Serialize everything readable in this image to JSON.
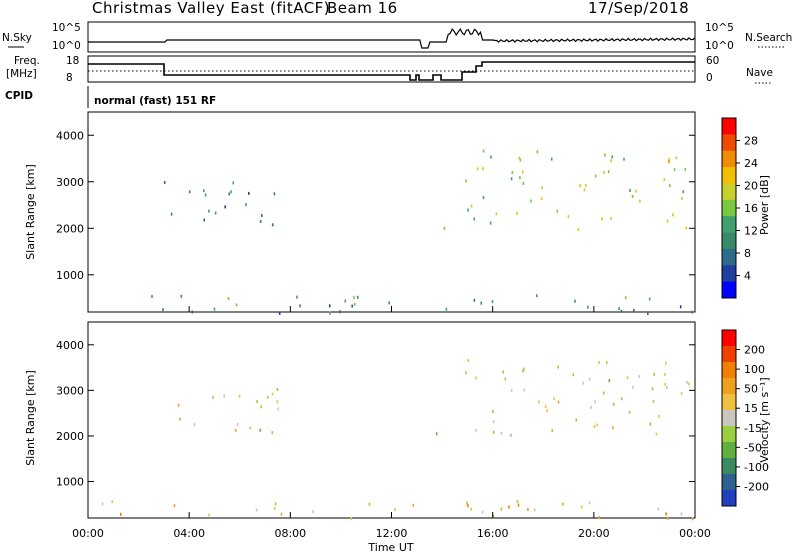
{
  "header": {
    "station": "Christmas Valley East (fitACF)",
    "beam": "Beam 16",
    "date": "17/Sep/2018"
  },
  "aux_panel": {
    "nsky_label": "N.Sky",
    "nsearch_label": "N.Search",
    "freq_label_1": "Freq.",
    "freq_label_2": "[MHz]",
    "nave_label": "Nave",
    "cpid_label": "CPID",
    "cpid_text": "normal (fast) 151 RF",
    "noise_ticks": [
      "10^5",
      "10^0"
    ],
    "noise_ticks_right": [
      "10^5",
      "10^0"
    ],
    "freq_ticks": [
      "18",
      "8"
    ],
    "nave_ticks": [
      "60",
      "0"
    ]
  },
  "power_panel": {
    "ylabel": "Slant Range [km]",
    "colorbar_label": "Power [dB]",
    "colorbar_ticks": [
      "28",
      "24",
      "20",
      "16",
      "12",
      "8",
      "4"
    ],
    "colorbar_colors": [
      "#0000ff",
      "#1e3ea0",
      "#2e6b8a",
      "#3a8a6a",
      "#40a070",
      "#7ac840",
      "#c8d030",
      "#f0c000",
      "#f08c00",
      "#f04a00",
      "#ff0000"
    ]
  },
  "velocity_panel": {
    "ylabel": "Slant Range [km]",
    "colorbar_label": "Velocity [m s⁻¹]",
    "colorbar_ticks": [
      "200",
      "100",
      "50",
      "15",
      "-15",
      "-50",
      "-100",
      "-200"
    ],
    "colorbar_colors": [
      "#2040c0",
      "#2e6090",
      "#3a8a60",
      "#60b040",
      "#9ad040",
      "#c8c8c0",
      "#f0c040",
      "#f0a020",
      "#f08000",
      "#f04000",
      "#ff0000"
    ]
  },
  "xaxis": {
    "label": "Time UT",
    "ticks": [
      "00:00",
      "04:00",
      "08:00",
      "12:00",
      "16:00",
      "20:00",
      "00:00"
    ]
  },
  "chart_data": [
    {
      "type": "heatmap",
      "title": "Power [dB]",
      "xlabel": "",
      "ylabel": "Slant Range [km]",
      "xlim": [
        0,
        24
      ],
      "ylim": [
        200,
        4500
      ],
      "yticks": [
        1000,
        2000,
        3000,
        4000
      ],
      "clim": [
        0,
        32
      ],
      "scatter_regions": [
        {
          "x": [
            3.0,
            7.7
          ],
          "y": [
            2050,
            3100
          ],
          "value": 9,
          "note": ""
        },
        {
          "x": [
            13.7,
            14.4
          ],
          "y": [
            1950,
            2450
          ],
          "value": 16
        },
        {
          "x": [
            14.9,
            24.0
          ],
          "y": [
            2000,
            3700
          ],
          "value": 18
        },
        {
          "x": [
            0.0,
            24.0
          ],
          "y": [
            200,
            600
          ],
          "value": 10
        }
      ]
    },
    {
      "type": "heatmap",
      "title": "Velocity [m s⁻¹]",
      "xlabel": "Time UT",
      "ylabel": "Slant Range [km]",
      "xlim": [
        0,
        24
      ],
      "ylim": [
        200,
        4500
      ],
      "yticks": [
        1000,
        2000,
        3000,
        4000
      ],
      "clim": [
        -200,
        200
      ],
      "scatter_regions": [
        {
          "x": [
            3.0,
            7.7
          ],
          "y": [
            2050,
            3100
          ],
          "value": 0
        },
        {
          "x": [
            13.7,
            14.4
          ],
          "y": [
            1950,
            2450
          ],
          "value": 0
        },
        {
          "x": [
            14.9,
            24.0
          ],
          "y": [
            2000,
            3700
          ],
          "value": 0
        },
        {
          "x": [
            0.0,
            24.0
          ],
          "y": [
            200,
            600
          ],
          "value": -30
        }
      ]
    }
  ]
}
